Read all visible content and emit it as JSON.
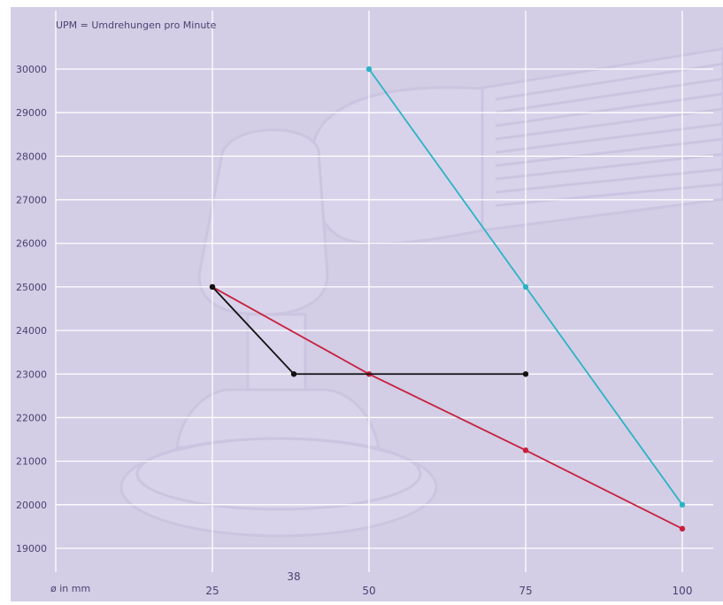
{
  "chart_data": {
    "type": "line",
    "title": "UPM = Umdrehungen pro Minute",
    "xlabel": "ø in mm",
    "ylabel": "",
    "x_ticks": [
      25,
      38,
      50,
      75,
      100
    ],
    "y_ticks": [
      19000,
      20000,
      21000,
      22000,
      23000,
      24000,
      25000,
      26000,
      27000,
      28000,
      29000,
      30000
    ],
    "xlim": [
      0,
      100
    ],
    "ylim": [
      18500,
      30300
    ],
    "grid": true,
    "series": [
      {
        "color": "#2cb3c6",
        "x": [
          50,
          75,
          100
        ],
        "y": [
          30000,
          25000,
          20000
        ]
      },
      {
        "color": "#c8203c",
        "x": [
          25,
          50,
          75,
          100
        ],
        "y": [
          25000,
          23000,
          21250,
          19450
        ]
      },
      {
        "color": "#111111",
        "x": [
          25,
          38,
          75
        ],
        "y": [
          25000,
          23000,
          23000
        ]
      }
    ]
  },
  "colors": {
    "background": "#d3cde6",
    "grid": "#ffffff",
    "text": "#4a4470",
    "illustration_fill": "#ddd8ee",
    "illustration_stroke": "#c6bfdd"
  }
}
